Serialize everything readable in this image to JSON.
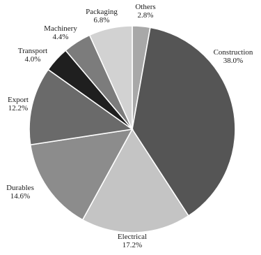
{
  "chart_data": {
    "type": "pie",
    "title": "",
    "start": "top, clockwise",
    "slices": [
      {
        "name": "Others",
        "value": 2.8,
        "label": "2.8%",
        "color": "#a8a8a8"
      },
      {
        "name": "Construction",
        "value": 38.0,
        "label": "38.0%",
        "color": "#555555"
      },
      {
        "name": "Electrical",
        "value": 17.2,
        "label": "17.2%",
        "color": "#c4c4c4"
      },
      {
        "name": "Durables",
        "value": 14.6,
        "label": "14.6%",
        "color": "#8c8c8c"
      },
      {
        "name": "Export",
        "value": 12.2,
        "label": "12.2%",
        "color": "#6a6a6a"
      },
      {
        "name": "Transport",
        "value": 4.0,
        "label": "4.0%",
        "color": "#1f1f1f"
      },
      {
        "name": "Machinery",
        "value": 4.4,
        "label": "4.4%",
        "color": "#7c7c7c"
      },
      {
        "name": "Packaging",
        "value": 6.8,
        "label": "6.8%",
        "color": "#d2d2d2"
      }
    ]
  }
}
